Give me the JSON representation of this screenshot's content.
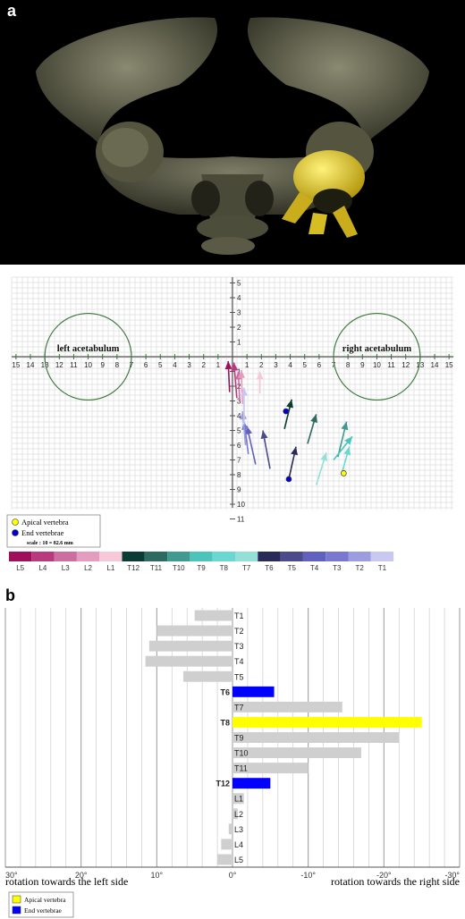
{
  "panel_a": {
    "letter": "a",
    "plot": {
      "left_label": "left acetabulum",
      "right_label": "right acetabulum",
      "legend": {
        "apical_label": "Apical vertebra",
        "end_label": "End vertebrae",
        "scale_label": "scale : 10 = 82.6 mm"
      },
      "x_ticks": [
        "15",
        "14",
        "13",
        "12",
        "11",
        "10",
        "9",
        "8",
        "7",
        "6",
        "5",
        "4",
        "3",
        "2",
        "1",
        "1",
        "2",
        "3",
        "4",
        "5",
        "6",
        "7",
        "8",
        "9",
        "10",
        "11",
        "12",
        "13",
        "14",
        "15"
      ],
      "y_ticks_up": [
        "1",
        "2",
        "3",
        "4",
        "5"
      ],
      "y_ticks_down": [
        "1",
        "2",
        "3",
        "4",
        "5",
        "6",
        "7",
        "8",
        "9",
        "10",
        "11"
      ],
      "level_strip": [
        {
          "label": "L5",
          "color": "#a0105a"
        },
        {
          "label": "L4",
          "color": "#b83a7c"
        },
        {
          "label": "L3",
          "color": "#cc6ea0"
        },
        {
          "label": "L2",
          "color": "#e49cc0"
        },
        {
          "label": "L1",
          "color": "#f6c8d8"
        },
        {
          "label": "T12",
          "color": "#0a3b34"
        },
        {
          "label": "T11",
          "color": "#2d6a62"
        },
        {
          "label": "T10",
          "color": "#3f9b90"
        },
        {
          "label": "T9",
          "color": "#4cc4bc"
        },
        {
          "label": "T8",
          "color": "#6ad8d0"
        },
        {
          "label": "T7",
          "color": "#94e0d8"
        },
        {
          "label": "T6",
          "color": "#2a2a58"
        },
        {
          "label": "T5",
          "color": "#4a4a8c"
        },
        {
          "label": "T4",
          "color": "#6060c0"
        },
        {
          "label": "T3",
          "color": "#7878d0"
        },
        {
          "label": "T2",
          "color": "#9c9ce0"
        },
        {
          "label": "T1",
          "color": "#c8c8f0"
        }
      ]
    }
  },
  "chart_data": [
    {
      "type": "scatter",
      "title": "",
      "xlabel": "",
      "ylabel": "",
      "xlim": [
        -15,
        15
      ],
      "ylim": [
        -11,
        5
      ],
      "grid": true,
      "legend": "bottom-left",
      "series": [
        {
          "name": "L5",
          "start": [
            -0.2,
            -2.4
          ],
          "end": [
            -0.3,
            -0.3
          ]
        },
        {
          "name": "L4",
          "start": [
            0.3,
            -2.8
          ],
          "end": [
            0.1,
            -0.4
          ]
        },
        {
          "name": "L3",
          "start": [
            0.5,
            -3.0
          ],
          "end": [
            0.4,
            -1.0
          ]
        },
        {
          "name": "L2",
          "start": [
            0.7,
            -3.2
          ],
          "end": [
            0.6,
            -0.9
          ]
        },
        {
          "name": "L1",
          "start": [
            1.9,
            -2.5
          ],
          "end": [
            1.9,
            -1.0
          ]
        },
        {
          "name": "T12",
          "start": [
            3.6,
            -4.9
          ],
          "end": [
            4.1,
            -2.9
          ]
        },
        {
          "name": "T11",
          "start": [
            5.2,
            -5.9
          ],
          "end": [
            5.8,
            -3.9
          ]
        },
        {
          "name": "T10",
          "start": [
            7.3,
            -6.8
          ],
          "end": [
            7.9,
            -4.4
          ]
        },
        {
          "name": "T9",
          "start": [
            7.0,
            -7.0
          ],
          "end": [
            8.3,
            -5.4
          ]
        },
        {
          "name": "T8",
          "start": [
            7.6,
            -7.8
          ],
          "end": [
            8.1,
            -6.1
          ]
        },
        {
          "name": "T7",
          "start": [
            5.8,
            -8.7
          ],
          "end": [
            6.5,
            -6.5
          ]
        },
        {
          "name": "T6",
          "start": [
            3.9,
            -8.3
          ],
          "end": [
            4.4,
            -6.1
          ]
        },
        {
          "name": "T5",
          "start": [
            2.6,
            -7.6
          ],
          "end": [
            2.1,
            -5.0
          ]
        },
        {
          "name": "T4",
          "start": [
            1.6,
            -7.3
          ],
          "end": [
            1.0,
            -4.7
          ]
        },
        {
          "name": "T3",
          "start": [
            1.1,
            -6.6
          ],
          "end": [
            0.8,
            -4.4
          ]
        },
        {
          "name": "T2",
          "start": [
            0.9,
            -6.0
          ],
          "end": [
            0.7,
            -3.7
          ]
        },
        {
          "name": "T1",
          "start": [
            0.8,
            -4.6
          ],
          "end": [
            0.8,
            -2.1
          ]
        }
      ],
      "apical_vertebra": [
        7.7,
        -7.9
      ],
      "end_vertebrae": [
        [
          3.7,
          -3.7
        ],
        [
          3.9,
          -8.3
        ]
      ],
      "acetabula": [
        {
          "label": "left acetabulum",
          "center": [
            -10,
            0
          ],
          "radius": 3
        },
        {
          "label": "right acetabulum",
          "center": [
            10,
            0
          ],
          "radius": 3
        }
      ]
    },
    {
      "type": "bar",
      "title": "",
      "xlabel": "",
      "ylabel": "",
      "orientation": "horizontal",
      "xlim": [
        30,
        -30
      ],
      "x_ticks": [
        "30°",
        "20°",
        "10°",
        "0°",
        "-10°",
        "-20°",
        "-30°"
      ],
      "left_caption": "rotation towards the left side",
      "right_caption": "rotation towards the right side",
      "grid": true,
      "legend": "bottom-left",
      "legend_items": [
        {
          "label": "Apical vertebra",
          "color": "#ffff00"
        },
        {
          "label": "End vertebrae",
          "color": "#0000ff"
        }
      ],
      "categories": [
        "T1",
        "T2",
        "T3",
        "T4",
        "T5",
        "T6",
        "T7",
        "T8",
        "T9",
        "T10",
        "T11",
        "T12",
        "L1",
        "L2",
        "L3",
        "L4",
        "L5"
      ],
      "values": [
        5,
        10,
        11,
        11.5,
        6.5,
        -5.5,
        -14.5,
        -25,
        -22,
        -17,
        -10,
        -5,
        -1.5,
        -0.7,
        0.5,
        1.5,
        2
      ],
      "bar_colors": {
        "default": "#cfcfcf",
        "apical": "#ffff00",
        "end": "#0000ff"
      },
      "apical": [
        "T8"
      ],
      "end": [
        "T6",
        "T12"
      ]
    }
  ]
}
